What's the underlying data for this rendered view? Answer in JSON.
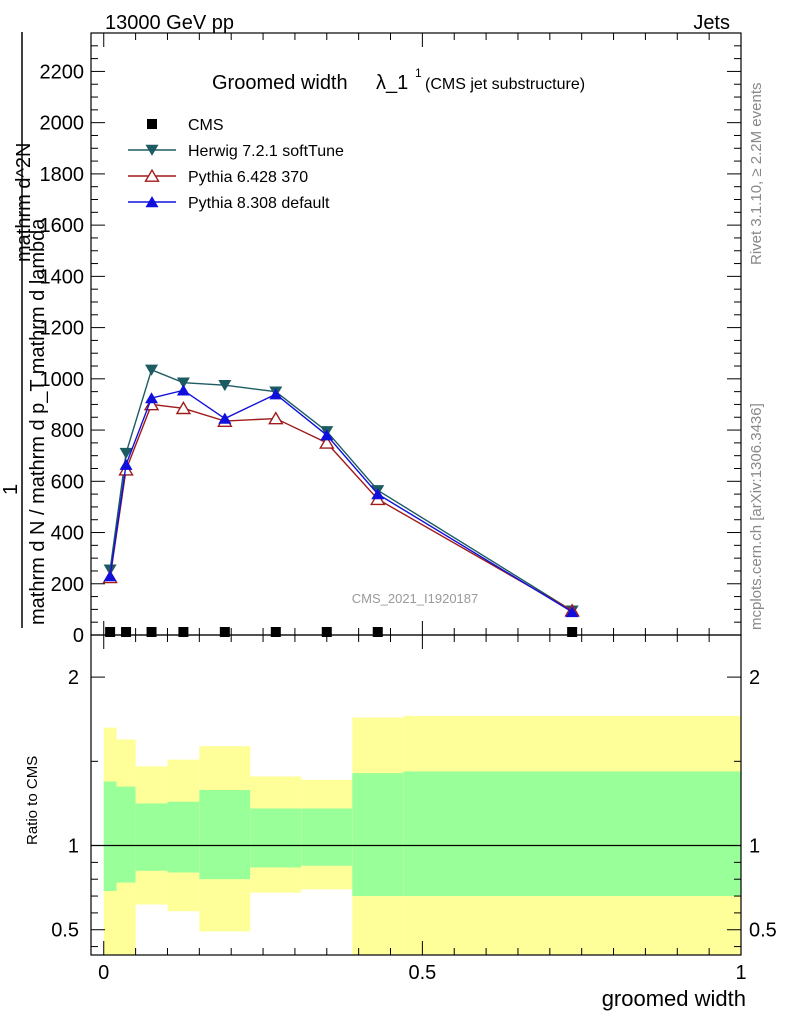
{
  "header": {
    "energy_label": "13000 GeV pp",
    "process_label": "Jets",
    "plot_title": "Groomed width",
    "lambda_symbol": "λ_1",
    "lambda_sup": "1",
    "plot_subtitle": "(CMS jet substructure)",
    "analysis_id": "CMS_2021_I1920187",
    "side_label_top": "Rivet 3.1.10, ≥ 2.2M events",
    "side_label_bottom": "mcplots.cern.ch [arXiv:1306.3436]"
  },
  "chart_data": [
    {
      "type": "line",
      "title": "Groomed width λ_1^1 (CMS jet substructure)",
      "ylabel_numerator": "1",
      "ylabel_denominator": "mathrm d N / mathrm d p_T mathrm d lambda",
      "ylabel_upper": "mathrm d^2N",
      "ylim": [
        0,
        2350
      ],
      "xlim": [
        -0.02,
        1.0
      ],
      "yticks": [
        0,
        200,
        400,
        600,
        800,
        1000,
        1200,
        1400,
        1600,
        1800,
        2000,
        2200
      ],
      "ytick_labels": [
        "0",
        "200",
        "400",
        "600",
        "800",
        "1000",
        "1200",
        "1400",
        "1600",
        "1800",
        "2000",
        "2200"
      ],
      "legend": [
        "CMS",
        "Herwig 7.2.1 softTune",
        "Pythia 6.428 370",
        "Pythia 8.308 default"
      ],
      "series": [
        {
          "name": "CMS",
          "color": "#000000",
          "marker": "square",
          "x": [
            0.01,
            0.035,
            0.075,
            0.125,
            0.19,
            0.27,
            0.35,
            0.43,
            0.735
          ],
          "values": [
            2,
            2,
            2,
            2,
            2,
            2,
            2,
            2,
            2
          ]
        },
        {
          "name": "Herwig 7.2.1 softTune",
          "color": "#1d5b63",
          "marker": "triangle-down",
          "x": [
            0.01,
            0.035,
            0.075,
            0.125,
            0.19,
            0.27,
            0.35,
            0.43,
            0.735
          ],
          "values": [
            255,
            710,
            1035,
            985,
            975,
            950,
            795,
            565,
            95
          ]
        },
        {
          "name": "Pythia 6.428 370",
          "color": "#a01c1c",
          "marker": "triangle-open",
          "x": [
            0.01,
            0.035,
            0.075,
            0.125,
            0.19,
            0.27,
            0.35,
            0.43,
            0.735
          ],
          "values": [
            225,
            645,
            900,
            885,
            835,
            845,
            750,
            530,
            95
          ]
        },
        {
          "name": "Pythia 8.308 default",
          "color": "#1010dd",
          "marker": "triangle-up",
          "x": [
            0.01,
            0.035,
            0.075,
            0.125,
            0.19,
            0.27,
            0.35,
            0.43,
            0.735
          ],
          "values": [
            230,
            665,
            925,
            955,
            845,
            940,
            780,
            550,
            90
          ]
        }
      ]
    },
    {
      "type": "area",
      "title": "Ratio to CMS",
      "ylabel": "Ratio to CMS",
      "xlabel": "groomed width",
      "xlim": [
        -0.02,
        1.0
      ],
      "ylim": [
        0.35,
        2.25
      ],
      "yticks": [
        0.5,
        1,
        2
      ],
      "ytick_labels": [
        "0.5",
        "1",
        "2"
      ],
      "xticks": [
        0,
        0.5,
        1
      ],
      "xtick_labels": [
        "0",
        "0.5",
        "1"
      ],
      "bins": [
        {
          "lo": 0.0,
          "hi": 0.02,
          "inner": [
            0.73,
            1.38
          ],
          "outer": [
            0.35,
            1.7
          ]
        },
        {
          "lo": 0.02,
          "hi": 0.05,
          "inner": [
            0.78,
            1.35
          ],
          "outer": [
            0.35,
            1.63
          ]
        },
        {
          "lo": 0.05,
          "hi": 0.1,
          "inner": [
            0.85,
            1.25
          ],
          "outer": [
            0.65,
            1.47
          ]
        },
        {
          "lo": 0.1,
          "hi": 0.15,
          "inner": [
            0.84,
            1.26
          ],
          "outer": [
            0.61,
            1.51
          ]
        },
        {
          "lo": 0.15,
          "hi": 0.23,
          "inner": [
            0.8,
            1.33
          ],
          "outer": [
            0.49,
            1.59
          ]
        },
        {
          "lo": 0.23,
          "hi": 0.31,
          "inner": [
            0.87,
            1.22
          ],
          "outer": [
            0.72,
            1.41
          ]
        },
        {
          "lo": 0.31,
          "hi": 0.39,
          "inner": [
            0.88,
            1.22
          ],
          "outer": [
            0.74,
            1.39
          ]
        },
        {
          "lo": 0.39,
          "hi": 0.47,
          "inner": [
            0.7,
            1.43
          ],
          "outer": [
            0.35,
            1.76
          ]
        },
        {
          "lo": 0.47,
          "hi": 1.0,
          "inner": [
            0.7,
            1.44
          ],
          "outer": [
            0.35,
            1.77
          ]
        }
      ],
      "reference_line": 1
    }
  ],
  "colors": {
    "band_inner": "#99ff99",
    "band_outer": "#ffff99"
  }
}
